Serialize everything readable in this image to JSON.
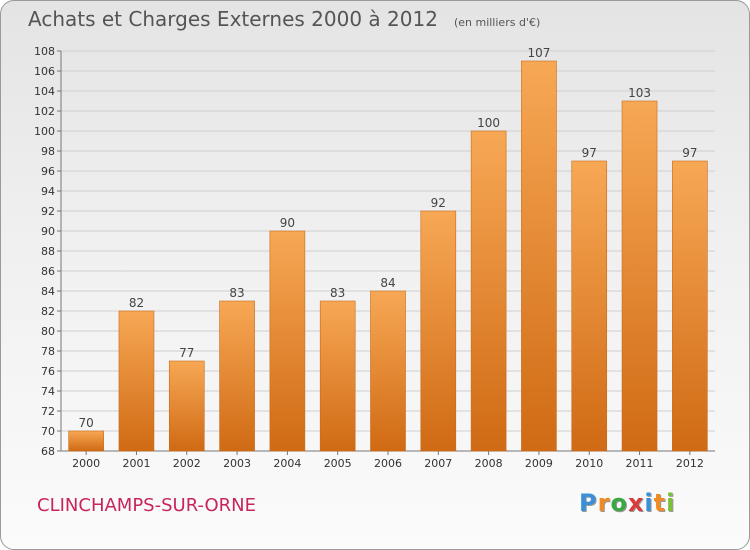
{
  "title": "Achats et Charges Externes 2000 à 2012",
  "unit": "(en milliers d'€)",
  "place": "CLINCHAMPS-SUR-ORNE",
  "brand": {
    "letters": [
      "P",
      "r",
      "o",
      "x",
      "i",
      "t",
      "i"
    ],
    "colors": [
      "#3b8fd6",
      "#f08a24",
      "#39a845",
      "#d93a3a",
      "#3b8fd6",
      "#f08a24",
      "#7bbf3a"
    ]
  },
  "chart_data": {
    "type": "bar",
    "categories": [
      "2000",
      "2001",
      "2002",
      "2003",
      "2004",
      "2005",
      "2006",
      "2007",
      "2008",
      "2009",
      "2010",
      "2011",
      "2012"
    ],
    "values": [
      70,
      82,
      77,
      83,
      90,
      83,
      84,
      92,
      100,
      107,
      97,
      103,
      97
    ],
    "ylim": [
      68,
      108
    ],
    "yticks": [
      68,
      70,
      72,
      74,
      76,
      78,
      80,
      82,
      84,
      86,
      88,
      90,
      92,
      94,
      96,
      98,
      100,
      102,
      104,
      106,
      108
    ],
    "grid": true,
    "bar_color": "#f0882e"
  }
}
